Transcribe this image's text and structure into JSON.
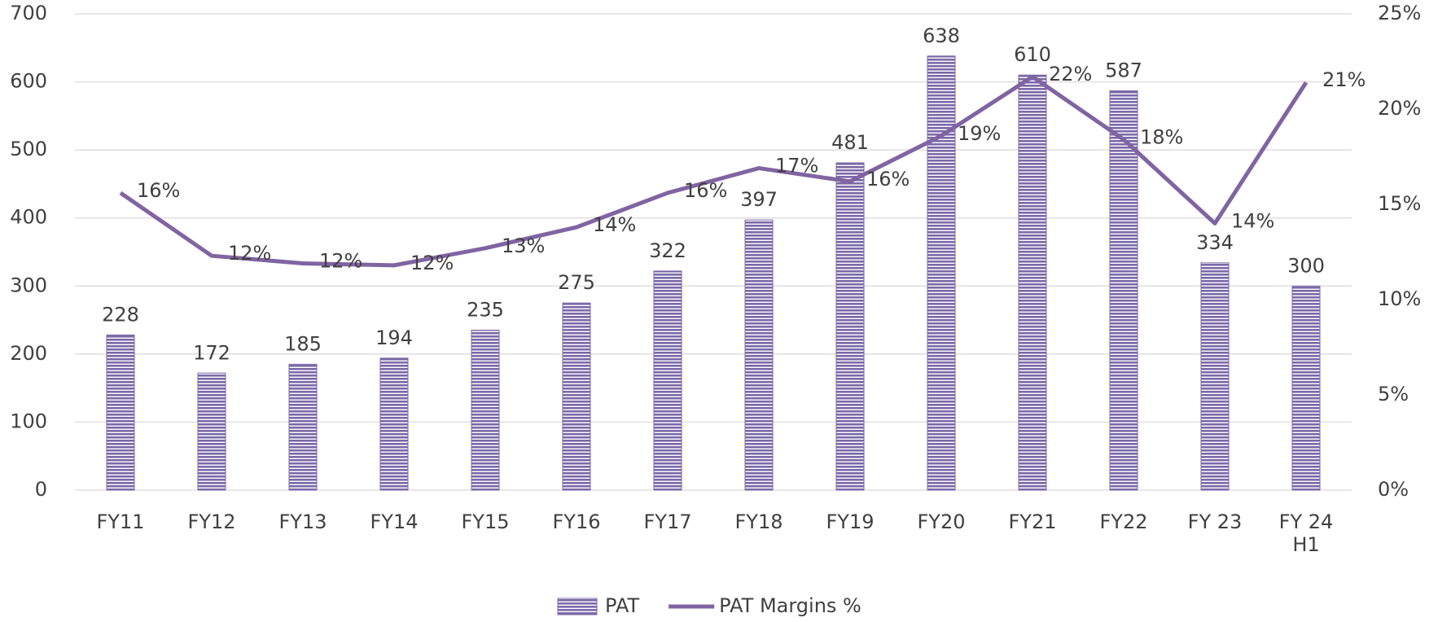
{
  "chart_data": {
    "type": "bar",
    "categories": [
      "FY11",
      "FY12",
      "FY13",
      "FY14",
      "FY15",
      "FY16",
      "FY17",
      "FY18",
      "FY19",
      "FY20",
      "FY21",
      "FY22",
      "FY 23",
      "FY 24 H1"
    ],
    "series": [
      {
        "name": "PAT",
        "type": "bar",
        "color": "#7b68a8",
        "values": [
          228,
          172,
          185,
          194,
          235,
          275,
          322,
          397,
          481,
          638,
          610,
          587,
          334,
          300
        ]
      },
      {
        "name": "PAT Margins %",
        "type": "line",
        "axis": "y2",
        "color": "#8064a2",
        "values": [
          15.6,
          12.3,
          11.9,
          11.8,
          12.7,
          13.8,
          15.6,
          16.9,
          16.2,
          18.6,
          21.7,
          18.4,
          14.0,
          21.4
        ],
        "value_labels": [
          "16%",
          "12%",
          "12%",
          "12%",
          "13%",
          "14%",
          "16%",
          "17%",
          "16%",
          "19%",
          "22%",
          "18%",
          "14%",
          "21%"
        ]
      }
    ],
    "ylim": [
      0,
      700
    ],
    "yticks": [
      0,
      100,
      200,
      300,
      400,
      500,
      600,
      700
    ],
    "y2lim": [
      0,
      25
    ],
    "y2ticks": [
      {
        "value": 0,
        "label": "0%"
      },
      {
        "value": 5,
        "label": "5%"
      },
      {
        "value": 10,
        "label": "10%"
      },
      {
        "value": 15,
        "label": "15%"
      },
      {
        "value": 20,
        "label": "20%"
      },
      {
        "value": 25,
        "label": "25%"
      }
    ],
    "grid": true,
    "legend": "bottom"
  }
}
